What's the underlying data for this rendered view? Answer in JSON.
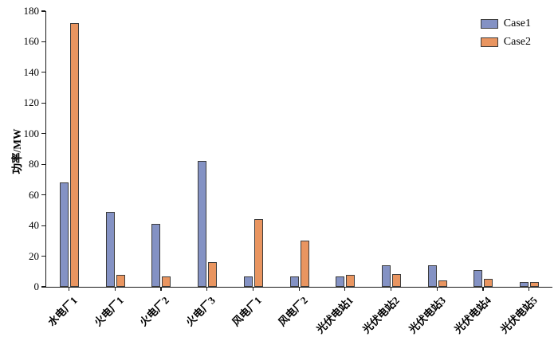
{
  "chart_data": {
    "type": "bar",
    "title": "",
    "ylabel": "功率/MW",
    "xlabel": "",
    "ylim": [
      0,
      180
    ],
    "yticks": [
      0,
      20,
      40,
      60,
      80,
      100,
      120,
      140,
      160,
      180
    ],
    "categories": [
      "水电厂1",
      "火电厂1",
      "火电厂2",
      "火电厂3",
      "风电厂1",
      "风电厂2",
      "光伏电站1",
      "光伏电站2",
      "光伏电站3",
      "光伏电站4",
      "光伏电站5"
    ],
    "series": [
      {
        "name": "Case1",
        "color": "#8492c4",
        "values": [
          68,
          49,
          41,
          82,
          7,
          7,
          7,
          14,
          14,
          11,
          3
        ]
      },
      {
        "name": "Case2",
        "color": "#e99560",
        "values": [
          172,
          8,
          7,
          16,
          44,
          30,
          8,
          8.5,
          4,
          5,
          3
        ]
      }
    ],
    "legend_position": "top-right",
    "grid": false
  },
  "colors": {
    "axis": "#1a1a1a",
    "bar_border": "#3c3c3c",
    "background": "#ffffff"
  }
}
